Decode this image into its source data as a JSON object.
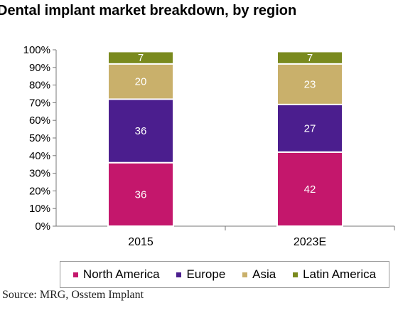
{
  "chart_data": {
    "type": "bar",
    "stacked": true,
    "title": "Dental implant market breakdown, by region",
    "categories": [
      "2015",
      "2023E"
    ],
    "series": [
      {
        "name": "North America",
        "color": "#c4176c",
        "values": [
          36,
          42
        ]
      },
      {
        "name": "Europe",
        "color": "#4b1e8e",
        "values": [
          36,
          27
        ]
      },
      {
        "name": "Asia",
        "color": "#c9b06b",
        "values": [
          20,
          23
        ]
      },
      {
        "name": "Latin America",
        "color": "#7a8a1e",
        "values": [
          7,
          7
        ]
      }
    ],
    "y_ticks": [
      "0%",
      "10%",
      "20%",
      "30%",
      "40%",
      "50%",
      "60%",
      "70%",
      "80%",
      "90%",
      "100%"
    ],
    "ylim": [
      0,
      100
    ],
    "legend_position": "bottom",
    "source": "Source: MRG, Osstem Implant"
  }
}
